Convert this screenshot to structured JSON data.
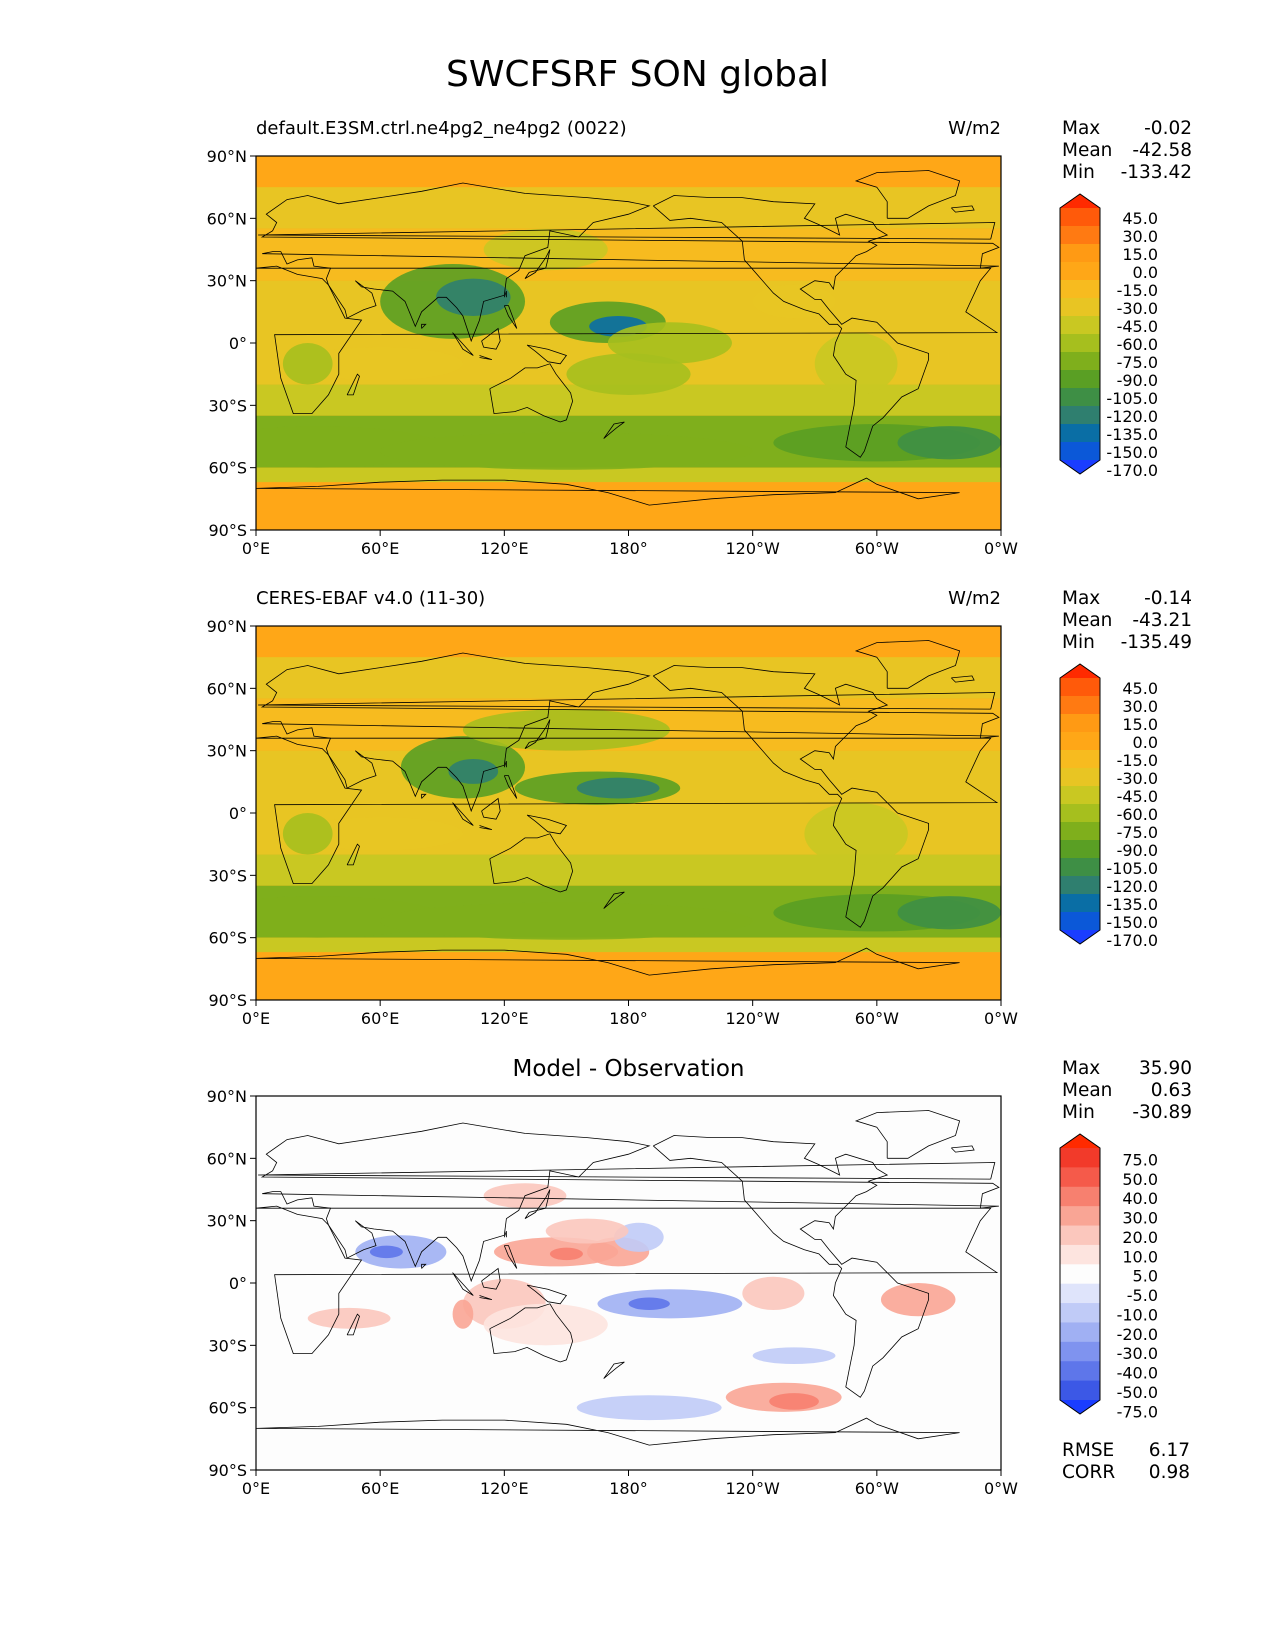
{
  "title": "SWCFSRF SON global",
  "axis_labels": {
    "lat": [
      "90°N",
      "60°N",
      "30°N",
      "0°",
      "30°S",
      "60°S",
      "90°S"
    ],
    "lon": [
      "0°E",
      "60°E",
      "120°E",
      "180°",
      "120°W",
      "60°W",
      "0°W"
    ]
  },
  "colors": {
    "ocean_background": "#ffa717",
    "difference_background": "#fdfdfd",
    "coastline": "#000000"
  },
  "panels": [
    {
      "id": "model",
      "title": "default.E3SM.ctrl.ne4pg2_ne4pg2 (0022)",
      "units": "W/m2",
      "stats": {
        "max_label": "Max",
        "max": "-0.02",
        "mean_label": "Mean",
        "mean": "-42.58",
        "min_label": "Min",
        "min": "-133.42"
      },
      "colorbar": {
        "labels": [
          "45.0",
          "30.0",
          "15.0",
          "0.0",
          "-15.0",
          "-30.0",
          "-45.0",
          "-60.0",
          "-75.0",
          "-90.0",
          "-105.0",
          "-120.0",
          "-135.0",
          "-150.0",
          "-170.0"
        ],
        "colors": [
          "#ff2a00",
          "#ff5a0a",
          "#ff7a12",
          "#ff9a14",
          "#ffa717",
          "#f7bb1f",
          "#e8c523",
          "#c9c822",
          "#a6bf1e",
          "#7faf1c",
          "#5a9f24",
          "#3e8f45",
          "#2f7f6f",
          "#0a6ea5",
          "#0b58d8",
          "#1a3dff"
        ]
      }
    },
    {
      "id": "obs",
      "title": "CERES-EBAF v4.0 (11-30)",
      "units": "W/m2",
      "stats": {
        "max_label": "Max",
        "max": "-0.14",
        "mean_label": "Mean",
        "mean": "-43.21",
        "min_label": "Min",
        "min": "-135.49"
      },
      "colorbar": {
        "labels": [
          "45.0",
          "30.0",
          "15.0",
          "0.0",
          "-15.0",
          "-30.0",
          "-45.0",
          "-60.0",
          "-75.0",
          "-90.0",
          "-105.0",
          "-120.0",
          "-135.0",
          "-150.0",
          "-170.0"
        ],
        "colors": [
          "#ff2a00",
          "#ff5a0a",
          "#ff7a12",
          "#ff9a14",
          "#ffa717",
          "#f7bb1f",
          "#e8c523",
          "#c9c822",
          "#a6bf1e",
          "#7faf1c",
          "#5a9f24",
          "#3e8f45",
          "#2f7f6f",
          "#0a6ea5",
          "#0b58d8",
          "#1a3dff"
        ]
      }
    },
    {
      "id": "diff",
      "title": "Model - Observation",
      "units": "",
      "stats": {
        "max_label": "Max",
        "max": "35.90",
        "mean_label": "Mean",
        "mean": "0.63",
        "min_label": "Min",
        "min": "-30.89"
      },
      "colorbar": {
        "labels": [
          "75.0",
          "50.0",
          "40.0",
          "30.0",
          "20.0",
          "10.0",
          "5.0",
          "-5.0",
          "-10.0",
          "-20.0",
          "-30.0",
          "-40.0",
          "-50.0",
          "-75.0"
        ],
        "colors": [
          "#ff2a00",
          "#f23a2a",
          "#f55a4a",
          "#f7806f",
          "#f9a595",
          "#fbc7bd",
          "#fde4df",
          "#fdfdfd",
          "#dfe4fb",
          "#c0cbf7",
          "#a0b0f3",
          "#7f93ef",
          "#5e76ea",
          "#3c58e6",
          "#1a3dff"
        ]
      },
      "rmse_label": "RMSE",
      "rmse": "6.17",
      "corr_label": "CORR",
      "corr": "0.98"
    }
  ]
}
